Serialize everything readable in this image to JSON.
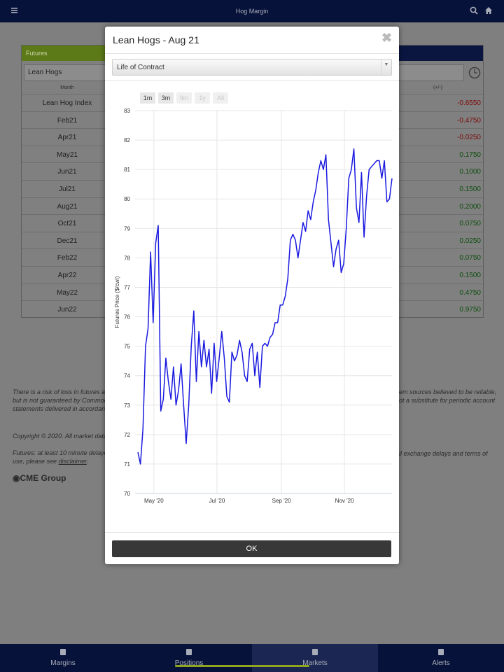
{
  "top_bar": {
    "title": "Hog Margin"
  },
  "background": {
    "tab": "Futures",
    "product": "Lean Hogs",
    "columns": [
      "Month",
      "(+/-)"
    ],
    "rows": [
      [
        "Lean Hog Index",
        "-0.6550"
      ],
      [
        "Feb21",
        "-0.4750"
      ],
      [
        "Apr21",
        "-0.0250"
      ],
      [
        "May21",
        "0.1750"
      ],
      [
        "Jun21",
        "0.1000"
      ],
      [
        "Jul21",
        "0.1500"
      ],
      [
        "Aug21",
        "0.2000"
      ],
      [
        "Oct21",
        "0.0750"
      ],
      [
        "Dec21",
        "0.0250"
      ],
      [
        "Feb22",
        "0.0750"
      ],
      [
        "Apr22",
        "0.1500"
      ],
      [
        "May22",
        "0.4750"
      ],
      [
        "Jun22",
        "0.9750"
      ]
    ]
  },
  "disclaimer": {
    "left": [
      "There is a risk of loss in futures and",
      "but is not guaranteed by Commodi",
      "statements delivered in accordanc"
    ],
    "right": [
      "em sources believed to be reliable,",
      "ot a substitute for periodic account"
    ],
    "copyright": "Copyright © 2020. All market data i",
    "futures_left": "Futures: at least 10 minute delayed",
    "futures_right": [
      "ll exchange delays and terms of",
      "use, please see"
    ],
    "link": "disclaimer",
    "link_tail": "."
  },
  "logo": "CME Group",
  "modal": {
    "title": "Lean Hogs - Aug 21",
    "range_select": "Life of Contract",
    "range_buttons": [
      {
        "label": "1m",
        "enabled": true
      },
      {
        "label": "3m",
        "enabled": true
      },
      {
        "label": "9m",
        "enabled": false
      },
      {
        "label": "1y",
        "enabled": false
      },
      {
        "label": "All",
        "enabled": false
      }
    ],
    "ok": "OK"
  },
  "chart_data": {
    "type": "line",
    "y_label": "Futures Price ($/cwt)",
    "color": "#1a1ae0",
    "xlim": [
      0,
      100
    ],
    "xticks": [
      {
        "value": 6.3,
        "label": "May '20"
      },
      {
        "value": 31.1,
        "label": "Jul '20"
      },
      {
        "value": 56.5,
        "label": "Sep '20"
      },
      {
        "value": 81.3,
        "label": "Nov '20"
      }
    ],
    "ylim": [
      70,
      83
    ],
    "yticks": [
      70,
      71,
      72,
      73,
      74,
      75,
      76,
      77,
      78,
      79,
      80,
      81,
      82,
      83
    ],
    "grid": true,
    "values": [
      71.4,
      71.0,
      72.2,
      75.0,
      75.6,
      78.2,
      75.8,
      78.5,
      79.1,
      72.8,
      73.2,
      74.6,
      73.8,
      73.2,
      74.3,
      73.0,
      73.5,
      74.4,
      73.0,
      71.7,
      73.0,
      75.0,
      76.2,
      73.8,
      75.5,
      74.3,
      75.2,
      74.3,
      74.9,
      73.4,
      75.1,
      73.8,
      74.6,
      75.5,
      74.6,
      73.3,
      73.1,
      74.8,
      74.5,
      74.7,
      75.2,
      74.8,
      74.0,
      73.8,
      74.9,
      75.1,
      74.0,
      74.8,
      73.6,
      75.0,
      75.1,
      75.0,
      75.3,
      75.4,
      75.8,
      75.8,
      76.4,
      76.4,
      76.7,
      77.3,
      78.6,
      78.8,
      78.6,
      78.0,
      78.6,
      79.2,
      78.9,
      79.6,
      79.3,
      79.9,
      80.3,
      80.9,
      81.3,
      81.0,
      81.5,
      79.3,
      78.5,
      77.7,
      78.3,
      78.6,
      77.5,
      77.8,
      79.0,
      80.7,
      81.0,
      81.7,
      79.7,
      79.2,
      80.9,
      78.7,
      80.1,
      81.0,
      81.1,
      81.2,
      81.3,
      81.3,
      80.7,
      81.3,
      79.9,
      80.0,
      80.7
    ]
  },
  "nav": {
    "items": [
      "Margins",
      "Positions",
      "Markets",
      "Alerts"
    ],
    "active_index": 2
  }
}
